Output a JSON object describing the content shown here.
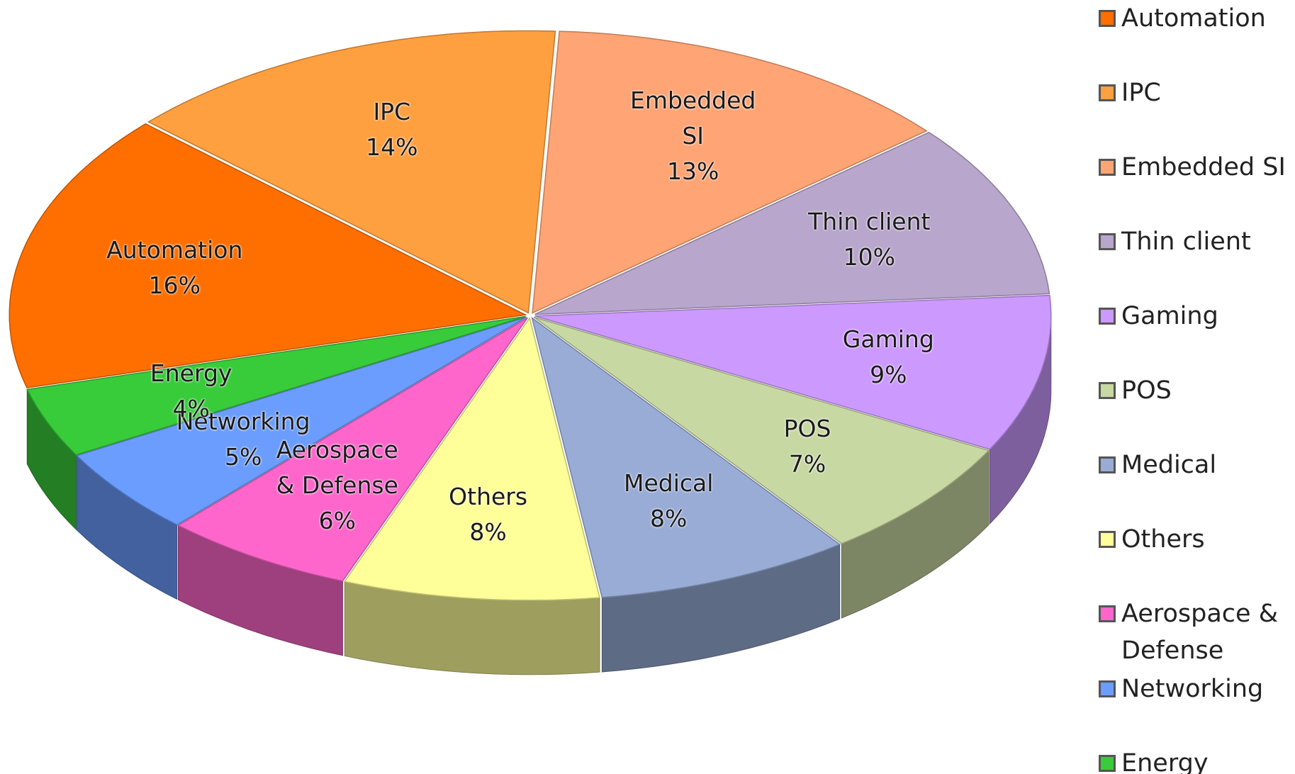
{
  "chart_data": {
    "type": "pie",
    "categories": [
      "Automation",
      "IPC",
      "Embedded SI",
      "Thin client",
      "Gaming",
      "POS",
      "Medical",
      "Others",
      "Aerospace & Defense",
      "Networking",
      "Energy"
    ],
    "values": [
      16,
      14,
      13,
      10,
      9,
      7,
      8,
      8,
      6,
      5,
      4
    ],
    "value_labels": [
      "16%",
      "14%",
      "13%",
      "10%",
      "9%",
      "7%",
      "8%",
      "8%",
      "6%",
      "5%",
      "4%"
    ],
    "colors": [
      "#ff6f00",
      "#ffa040",
      "#ffa474",
      "#b8a6cc",
      "#cc99ff",
      "#c8d8a2",
      "#98acd6",
      "#ffff99",
      "#ff66cc",
      "#6a9dff",
      "#38cc3a"
    ]
  }
}
